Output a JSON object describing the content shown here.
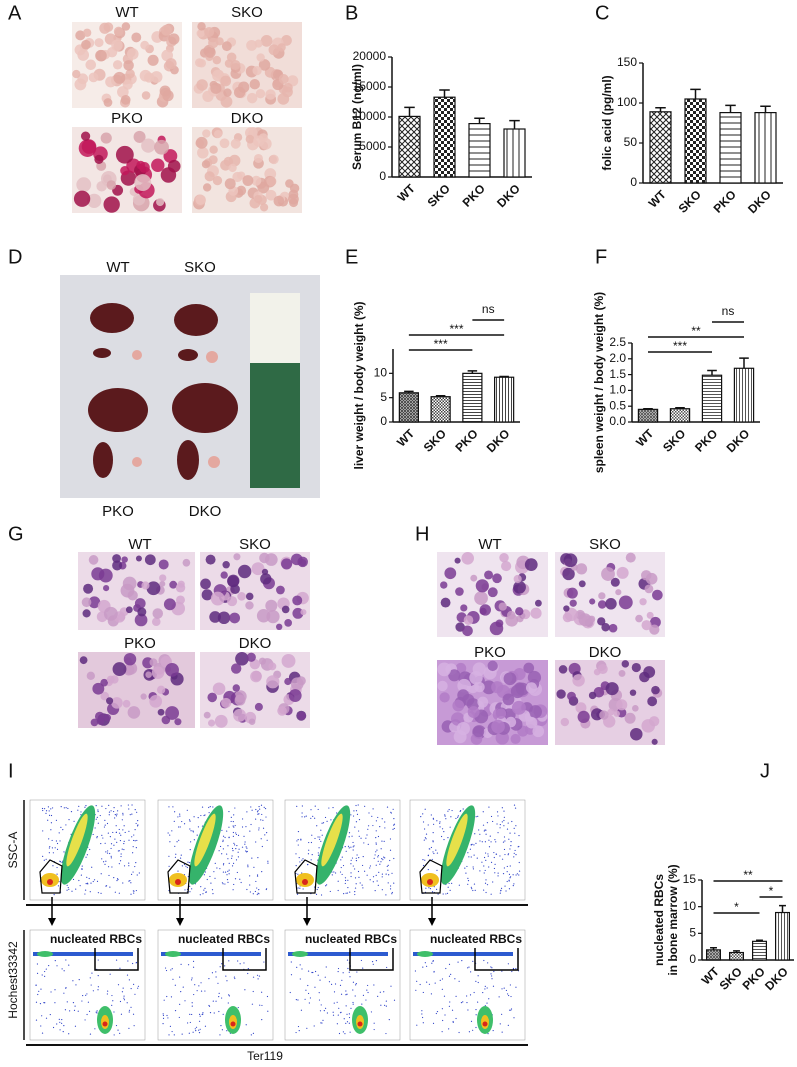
{
  "panels": {
    "A": {
      "letter": "A",
      "labels": [
        "WT",
        "SKO",
        "PKO",
        "DKO"
      ]
    },
    "D": {
      "letter": "D",
      "labels": [
        "WT",
        "SKO",
        "PKO",
        "DKO"
      ]
    },
    "G": {
      "letter": "G",
      "labels": [
        "WT",
        "SKO",
        "PKO",
        "DKO"
      ]
    },
    "H": {
      "letter": "H",
      "labels": [
        "WT",
        "SKO",
        "PKO",
        "DKO"
      ]
    },
    "I": {
      "letter": "I",
      "y_top": "SSC-A",
      "y_bottom": "Hochest33342",
      "x_label": "Ter119",
      "gates": [
        "nucleated RBCs",
        "nucleated RBCs",
        "nucleated RBCs",
        "nucleated RBCs"
      ]
    }
  },
  "chart_data": [
    {
      "type": "bar",
      "panel": "B",
      "ylabel": "Serum B12 (ng/ml)",
      "categories": [
        "WT",
        "SKO",
        "PKO",
        "DKO"
      ],
      "values": [
        10100,
        13300,
        8900,
        8000
      ],
      "errors": [
        1500,
        1200,
        900,
        1400
      ],
      "color": "#222222",
      "ylim": [
        0,
        20000
      ],
      "yticks": [
        0,
        5000,
        10000,
        15000,
        20000
      ],
      "annotations": []
    },
    {
      "type": "bar",
      "panel": "C",
      "ylabel": "folic acid (pg/ml)",
      "categories": [
        "WT",
        "SKO",
        "PKO",
        "DKO"
      ],
      "values": [
        89,
        105,
        88,
        88
      ],
      "errors": [
        5,
        12,
        9,
        8
      ],
      "color": "#222222",
      "ylim": [
        0,
        150
      ],
      "yticks": [
        0,
        50,
        100,
        150
      ],
      "annotations": []
    },
    {
      "type": "bar",
      "panel": "E",
      "ylabel": "liver weight / body weight (%)",
      "categories": [
        "WT",
        "SKO",
        "PKO",
        "DKO"
      ],
      "values": [
        6.0,
        5.2,
        10.0,
        9.2
      ],
      "errors": [
        0.3,
        0.2,
        0.5,
        0.15
      ],
      "color": "#444444",
      "ylim": [
        0,
        15
      ],
      "yticks": [
        0,
        5,
        10
      ],
      "annotations": [
        {
          "text": "***",
          "between": [
            0,
            2
          ]
        },
        {
          "text": "***",
          "between": [
            0,
            3
          ]
        },
        {
          "text": "ns",
          "between": [
            2,
            3
          ]
        }
      ]
    },
    {
      "type": "bar",
      "panel": "F",
      "ylabel": "spleen weight / body weight (%)",
      "categories": [
        "WT",
        "SKO",
        "PKO",
        "DKO"
      ],
      "values": [
        0.4,
        0.42,
        1.48,
        1.7
      ],
      "errors": [
        0.02,
        0.03,
        0.15,
        0.32
      ],
      "color": "#555555",
      "ylim": [
        0,
        2.5
      ],
      "yticks": [
        {
          "value": 0,
          "label": "0.0"
        },
        0.5,
        {
          "value": 1,
          "label": "1.0"
        },
        1.5,
        {
          "value": 2,
          "label": "2.0"
        },
        2.5
      ],
      "annotations": [
        {
          "text": "***",
          "between": [
            0,
            2
          ]
        },
        {
          "text": "**",
          "between": [
            0,
            3
          ]
        },
        {
          "text": "ns",
          "between": [
            2,
            3
          ]
        }
      ]
    },
    {
      "type": "bar",
      "panel": "J",
      "ylabel": [
        "nucleated RBCs",
        "in bone marrow (%)"
      ],
      "categories": [
        "WT",
        "SKO",
        "PKO",
        "DKO"
      ],
      "values": [
        1.9,
        1.4,
        3.5,
        8.9
      ],
      "errors": [
        0.4,
        0.3,
        0.2,
        1.3
      ],
      "color": "#555555",
      "ylim": [
        0,
        15
      ],
      "yticks": [
        0,
        5,
        10,
        15
      ],
      "annotations": [
        {
          "text": "*",
          "between": [
            0,
            2
          ]
        },
        {
          "text": "*",
          "between": [
            2,
            3
          ]
        },
        {
          "text": "**",
          "between": [
            0,
            3
          ]
        }
      ]
    }
  ]
}
